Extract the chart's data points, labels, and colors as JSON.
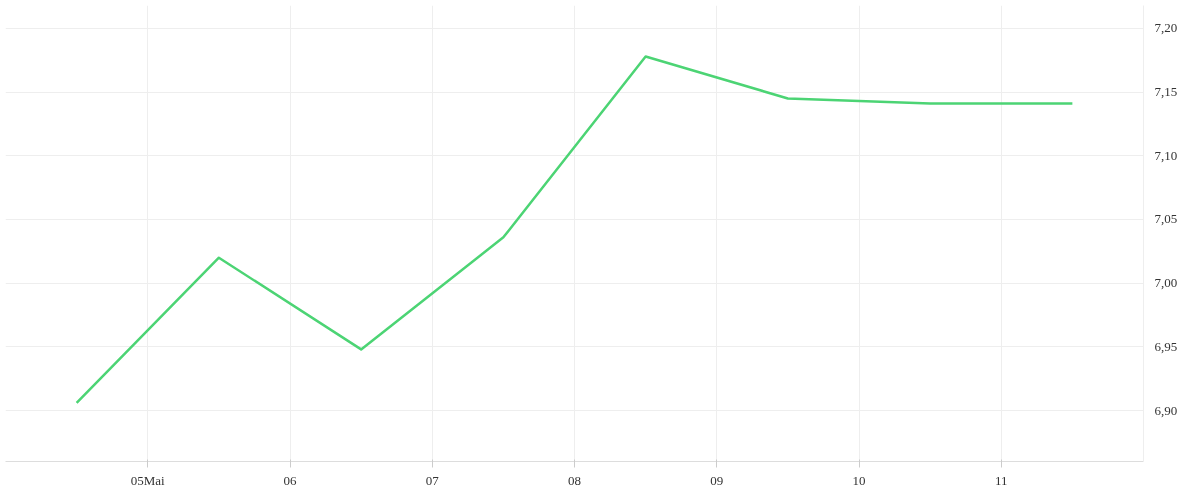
{
  "chart_data": {
    "type": "line",
    "x": [
      4.5,
      5.5,
      6.5,
      7.5,
      8.5,
      9.5,
      10.5,
      11.5
    ],
    "series": [
      {
        "color": "#4cd474",
        "values": [
          6.906,
          7.02,
          6.948,
          7.036,
          7.178,
          7.145,
          7.141,
          7.141
        ]
      }
    ],
    "xlim": [
      4,
      12
    ],
    "xticks": [
      {
        "value": 5,
        "label": "05Mai"
      },
      {
        "value": 6,
        "label": "06"
      },
      {
        "value": 7,
        "label": "07"
      },
      {
        "value": 8,
        "label": "08"
      },
      {
        "value": 9,
        "label": "09"
      },
      {
        "value": 10,
        "label": "10"
      },
      {
        "value": 11,
        "label": "11"
      }
    ],
    "ylim": [
      6.86,
      7.218
    ],
    "yticks": [
      {
        "value": 6.9,
        "label": "6,90"
      },
      {
        "value": 6.95,
        "label": "6,95"
      },
      {
        "value": 7.0,
        "label": "7,00"
      },
      {
        "value": 7.05,
        "label": "7,05"
      },
      {
        "value": 7.1,
        "label": "7,10"
      },
      {
        "value": 7.15,
        "label": "7,15"
      },
      {
        "value": 7.2,
        "label": "7,20"
      }
    ],
    "grid": true,
    "line_style": "solid"
  }
}
